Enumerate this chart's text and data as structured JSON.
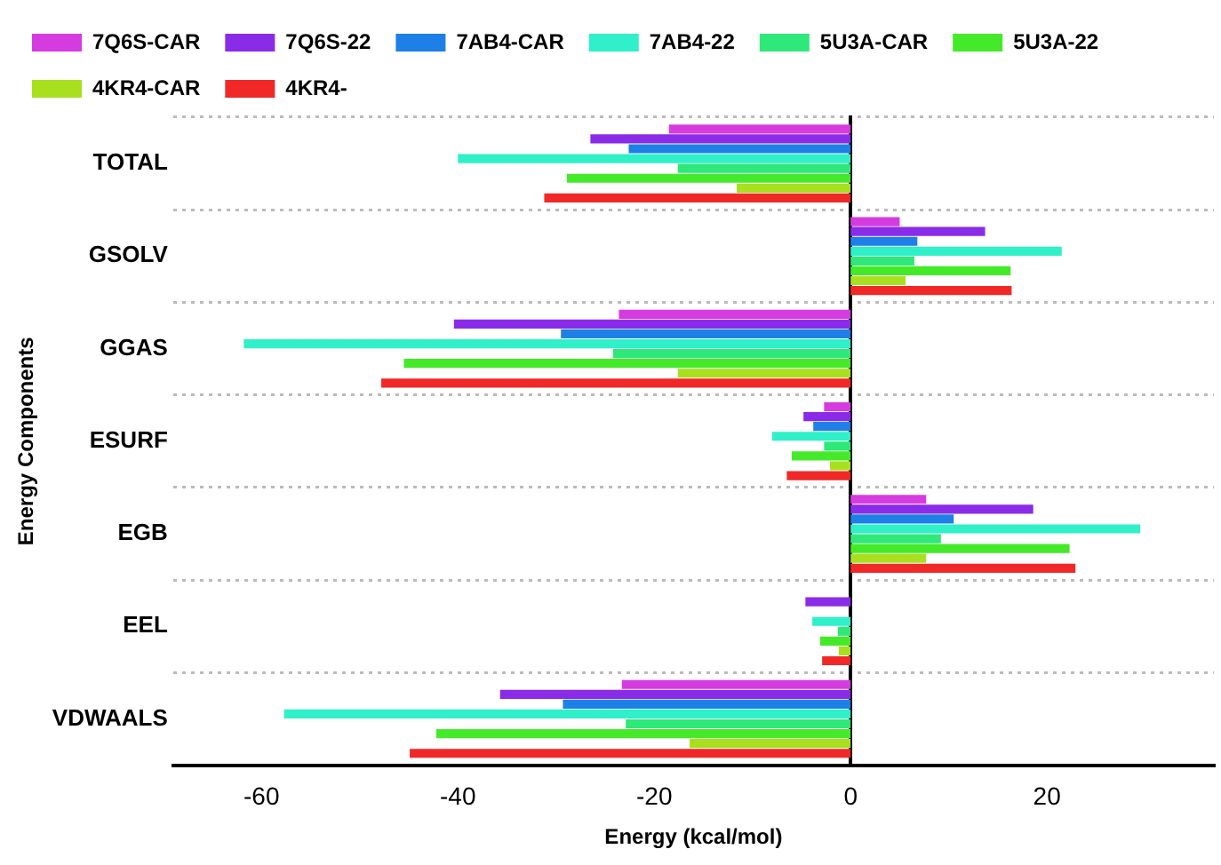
{
  "chart_data": {
    "type": "bar",
    "orientation": "horizontal",
    "xlabel": "Energy (kcal/mol)",
    "ylabel": "Energy Components",
    "categories": [
      "TOTAL",
      "GSOLV",
      "GGAS",
      "ESURF",
      "EGB",
      "EEL",
      "VDWAALS"
    ],
    "xlim": [
      -69,
      37
    ],
    "xticks": [
      -60,
      -40,
      -20,
      0,
      20
    ],
    "grid": "y",
    "legend": "top left",
    "series": [
      {
        "name": "7Q6S-CAR",
        "color": "#d63be0",
        "values": [
          -18.5,
          5.0,
          -23.6,
          -2.7,
          7.7,
          0,
          -23.3
        ]
      },
      {
        "name": "7Q6S-22",
        "color": "#8a2be8",
        "values": [
          -26.5,
          13.7,
          -40.4,
          -4.8,
          18.6,
          -4.6,
          -35.7
        ]
      },
      {
        "name": "7AB4-CAR",
        "color": "#1e7fe6",
        "values": [
          -22.6,
          6.8,
          -29.5,
          -3.8,
          10.5,
          0,
          -29.3
        ]
      },
      {
        "name": "7AB4-22",
        "color": "#2ff0c8",
        "values": [
          -40,
          21.5,
          -61.8,
          -8,
          29.5,
          -3.9,
          -57.7
        ]
      },
      {
        "name": "5U3A-CAR",
        "color": "#2ee87a",
        "values": [
          -17.6,
          6.5,
          -24.2,
          -2.7,
          9.2,
          -1.3,
          -22.9
        ]
      },
      {
        "name": "5U3A-22",
        "color": "#44ea2a",
        "values": [
          -28.9,
          16.3,
          -45.5,
          -6,
          22.3,
          -3.1,
          -42.2
        ]
      },
      {
        "name": "4KR4-CAR",
        "color": "#a8e020",
        "values": [
          -11.6,
          5.6,
          -17.6,
          -2.1,
          7.7,
          -1.2,
          -16.4
        ]
      },
      {
        "name": "4KR4-",
        "color": "#f02828",
        "values": [
          -31.2,
          16.4,
          -47.8,
          -6.5,
          22.9,
          -2.9,
          -44.9
        ]
      }
    ]
  }
}
